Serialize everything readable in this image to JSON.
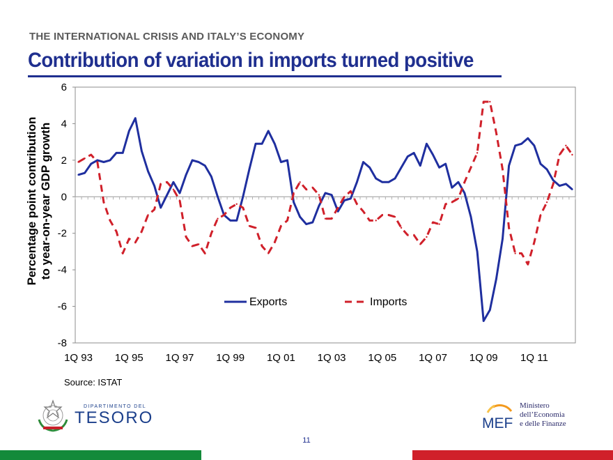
{
  "header": {
    "kicker": "THE INTERNATIONAL CRISIS AND ITALY’S ECONOMY",
    "title": "Contribution of variation in imports turned positive"
  },
  "chart_data": {
    "type": "line",
    "title": "",
    "ylabel": "Percentage point contribution to year-on-year GDP growth",
    "ylabel_lines": [
      "Percentage point contribution",
      "to year-on-year GDP growth"
    ],
    "xlabel": "",
    "ylim": [
      -8,
      6
    ],
    "yticks": [
      6,
      4,
      2,
      0,
      -2,
      -4,
      -6,
      -8
    ],
    "x_start": "1Q 93",
    "quarters": 79,
    "x_tick_labels": [
      "1Q 93",
      "1Q 95",
      "1Q 97",
      "1Q 99",
      "1Q 01",
      "1Q 03",
      "1Q 05",
      "1Q 07",
      "1Q 09",
      "1Q 11"
    ],
    "grid": false,
    "legend_position": "bottom-center",
    "series": [
      {
        "name": "Exports",
        "color": "#1f2f9f",
        "style": "solid",
        "values": [
          1.2,
          1.3,
          1.8,
          2.0,
          1.9,
          2.0,
          2.4,
          2.4,
          3.6,
          4.3,
          2.5,
          1.4,
          0.6,
          -0.6,
          0.1,
          0.8,
          0.2,
          1.2,
          2.0,
          1.9,
          1.7,
          1.1,
          0.0,
          -1.0,
          -1.3,
          -1.3,
          0.0,
          1.5,
          2.9,
          2.9,
          3.6,
          2.9,
          1.9,
          2.0,
          -0.3,
          -1.1,
          -1.5,
          -1.4,
          -0.5,
          0.2,
          0.1,
          -0.8,
          -0.2,
          -0.1,
          0.8,
          1.9,
          1.6,
          1.0,
          0.8,
          0.8,
          1.0,
          1.6,
          2.2,
          2.4,
          1.7,
          2.9,
          2.3,
          1.6,
          1.8,
          0.5,
          0.8,
          0.2,
          -1.1,
          -3.0,
          -6.8,
          -6.2,
          -4.5,
          -2.3,
          1.7,
          2.8,
          2.9,
          3.2,
          2.8,
          1.8,
          1.5,
          0.9,
          0.6,
          0.7,
          0.4
        ]
      },
      {
        "name": "Imports",
        "color": "#d0202a",
        "style": "dashed",
        "values": [
          1.9,
          2.1,
          2.3,
          1.9,
          -0.3,
          -1.3,
          -1.9,
          -3.1,
          -2.3,
          -2.5,
          -1.9,
          -1.0,
          -0.7,
          0.7,
          0.8,
          0.4,
          -0.2,
          -2.2,
          -2.7,
          -2.6,
          -3.1,
          -2.0,
          -1.2,
          -1.0,
          -0.6,
          -0.4,
          -0.6,
          -1.6,
          -1.7,
          -2.7,
          -3.1,
          -2.5,
          -1.6,
          -1.3,
          0.2,
          0.8,
          0.4,
          0.5,
          0.1,
          -1.2,
          -1.2,
          -0.6,
          0.0,
          0.3,
          -0.4,
          -0.8,
          -1.3,
          -1.3,
          -1.0,
          -1.0,
          -1.1,
          -1.7,
          -2.1,
          -2.1,
          -2.6,
          -2.2,
          -1.4,
          -1.5,
          -0.4,
          -0.3,
          -0.1,
          0.8,
          1.6,
          2.4,
          5.2,
          5.2,
          3.5,
          1.5,
          -1.7,
          -3.1,
          -3.1,
          -3.7,
          -2.5,
          -1.0,
          -0.3,
          0.7,
          2.3,
          2.8,
          2.3
        ]
      }
    ]
  },
  "footer": {
    "source": "Source: ISTAT",
    "dept_small": "DIPARTIMENTO DEL",
    "dept_big": "TESORO",
    "mef_logo_text": "MEF",
    "ministry_lines": [
      "Ministero",
      "dell’Economia",
      "e delle Finanze"
    ],
    "page_number": "11"
  },
  "colors": {
    "title": "#1f2f8f",
    "flag_green": "#138a3a",
    "flag_red": "#d0202a"
  }
}
